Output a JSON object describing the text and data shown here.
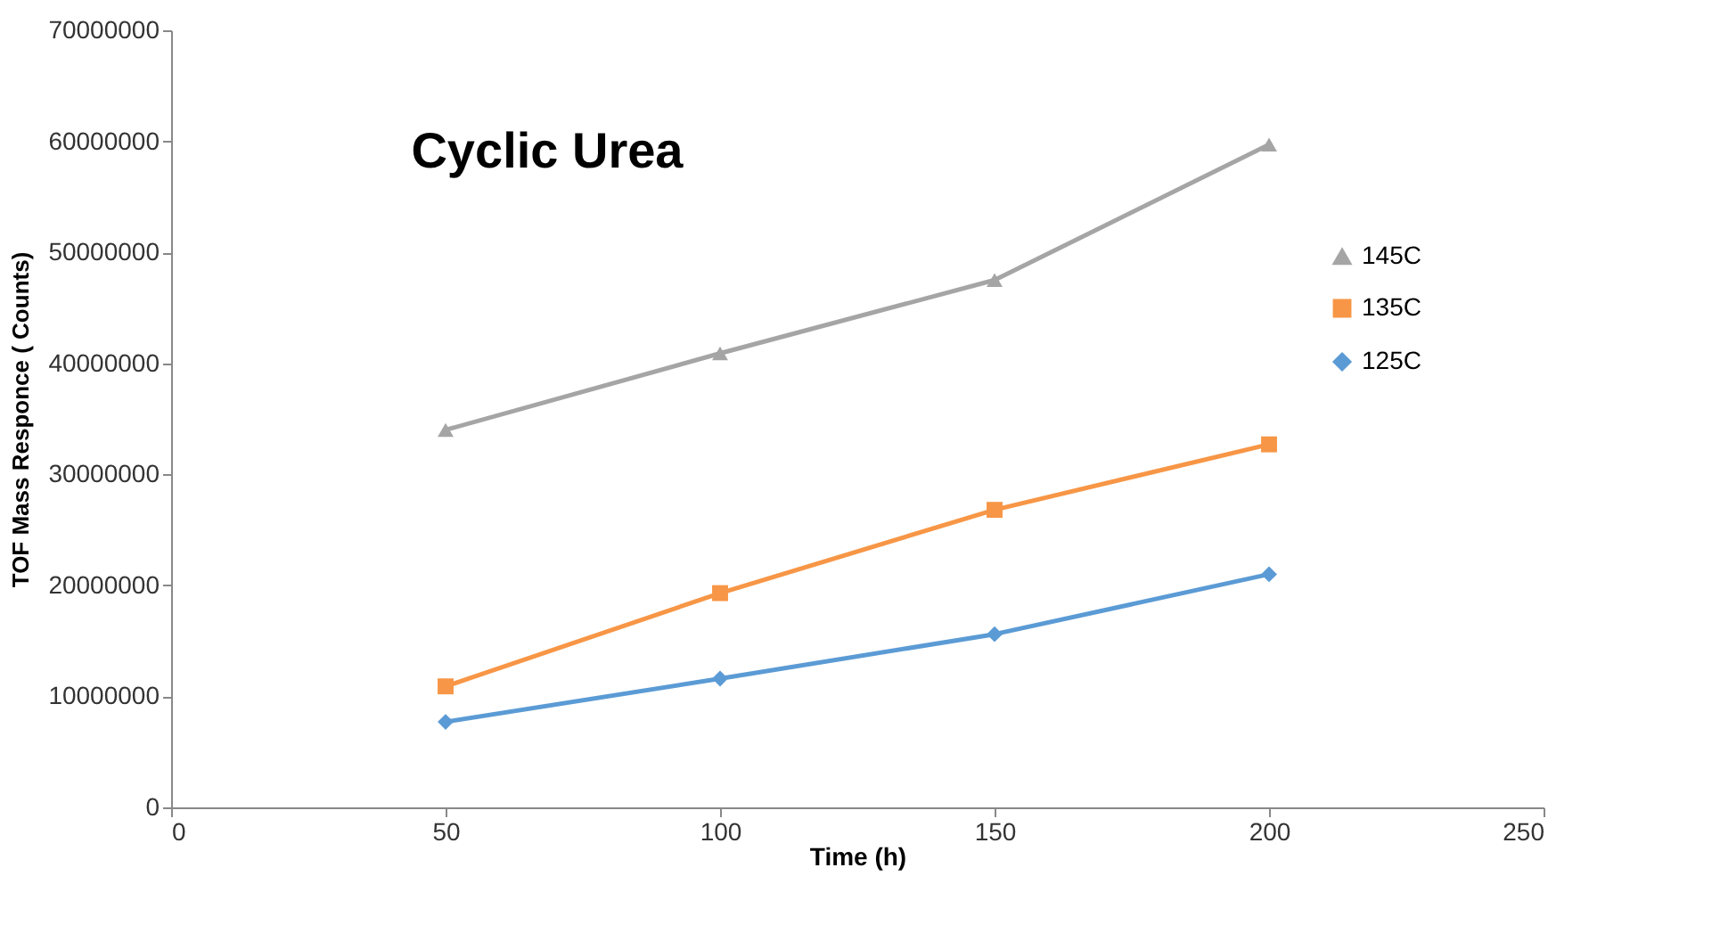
{
  "chart_data": {
    "type": "line",
    "title": "Cyclic Urea",
    "xlabel": "Time (h)",
    "ylabel": "TOF Mass Responce ( Counts)",
    "x": [
      50,
      100,
      150,
      200
    ],
    "series": [
      {
        "name": "145C",
        "color": "#a5a5a5",
        "marker": "triangle",
        "values": [
          34000000,
          40900000,
          47500000,
          59700000
        ]
      },
      {
        "name": "135C",
        "color": "#f79646",
        "marker": "square",
        "values": [
          10900000,
          19300000,
          26800000,
          32700000
        ]
      },
      {
        "name": "125C",
        "color": "#5b9bd5",
        "marker": "diamond",
        "values": [
          7700000,
          11600000,
          15600000,
          21000000
        ]
      }
    ],
    "xlim": [
      0,
      250
    ],
    "xticks": [
      0,
      50,
      100,
      150,
      200,
      250
    ],
    "ylim": [
      0,
      70000000
    ],
    "yticks": [
      0,
      10000000,
      20000000,
      30000000,
      40000000,
      50000000,
      60000000,
      70000000
    ],
    "grid": false,
    "legend": "top right",
    "line_style": "solid"
  }
}
